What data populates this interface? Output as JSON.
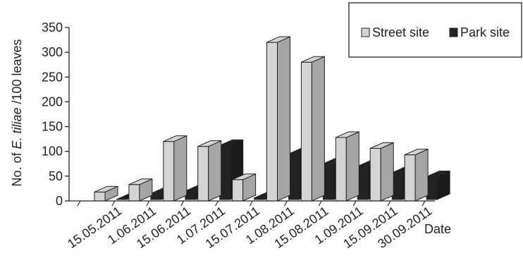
{
  "chart_data": {
    "type": "bar",
    "style": "3d-clustered-column",
    "categories": [
      "15.05.2011",
      "1.06.2011",
      "15.06.2011",
      "1.07.2011",
      "15.07.2011",
      "1.08.2011",
      "15.08.2011",
      "1.09.2011",
      "15.09.2011",
      "30.09.2011"
    ],
    "series": [
      {
        "name": "Street site",
        "values": [
          18,
          33,
          120,
          110,
          43,
          320,
          280,
          128,
          106,
          93
        ],
        "color": "#d4d4d4"
      },
      {
        "name": "Park site",
        "values": [
          0,
          12,
          17,
          109,
          3,
          92,
          72,
          67,
          54,
          46
        ],
        "color": "#222222"
      }
    ],
    "ylabel_prefix": "No. of ",
    "ylabel_italic": "E. tiliae",
    "ylabel_suffix": " /100 leaves",
    "xlabel": "Date",
    "ylim": [
      0,
      350
    ],
    "yticks": [
      0,
      50,
      100,
      150,
      200,
      250,
      300,
      350
    ],
    "legend_position": "top-right",
    "grid": false
  }
}
